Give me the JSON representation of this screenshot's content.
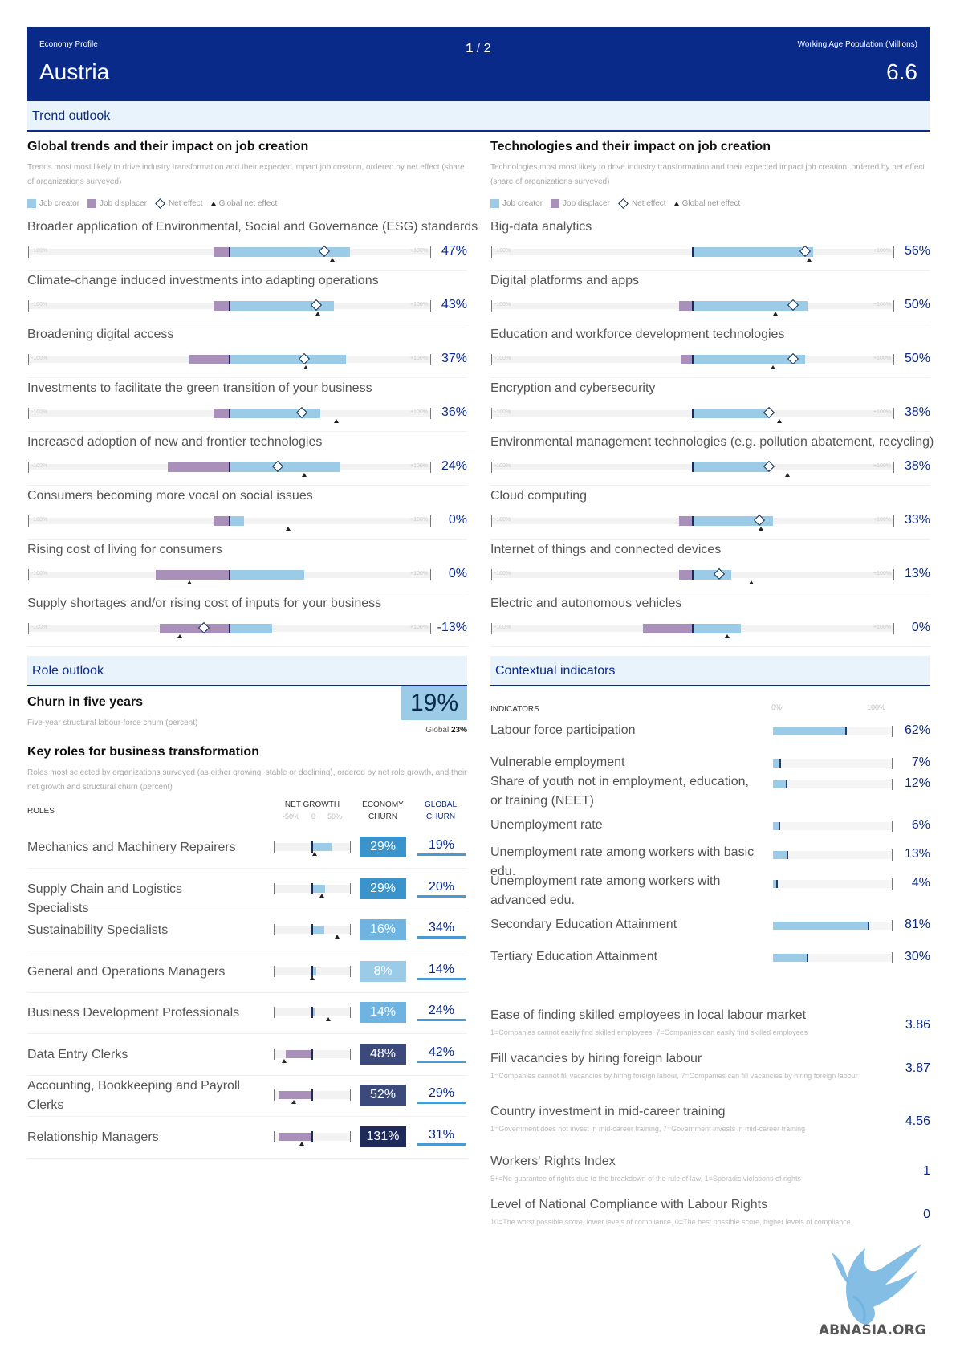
{
  "header": {
    "economy_profile_label": "Economy Profile",
    "country": "Austria",
    "page_current": "1",
    "page_sep": "/",
    "page_total": "2",
    "wap_label": "Working Age Population (Millions)",
    "wap_value": "6.6"
  },
  "colors": {
    "navy": "#0a2a8a",
    "creator": "#9ccbe8",
    "displacer": "#a990bb"
  },
  "trend_outlook": {
    "title": "Trend outlook",
    "legend": {
      "creator": "Job creator",
      "displacer": "Job displacer",
      "net": "Net effect",
      "global": "Global net effect"
    },
    "scale_left": "-100%",
    "scale_right": "+100%",
    "trends": {
      "title": "Global trends and their impact on job creation",
      "desc": "Trends most most likely to drive industry transformation and their expected impact job creation, ordered by net effect (share of organizations surveyed)",
      "items": [
        {
          "label": "Broader application of Environmental, Social and Governance (ESG) standards",
          "creator": 60,
          "displacer": 8,
          "net": 47,
          "global": 51,
          "value": "47%"
        },
        {
          "label": "Climate-change induced investments into adapting operations",
          "creator": 52,
          "displacer": 8,
          "net": 43,
          "global": 44,
          "value": "43%"
        },
        {
          "label": "Broadening digital access",
          "creator": 58,
          "displacer": 20,
          "net": 37,
          "global": 38,
          "value": "37%"
        },
        {
          "label": "Investments to facilitate the green transition of your business",
          "creator": 45,
          "displacer": 8,
          "net": 36,
          "global": 53,
          "value": "36%"
        },
        {
          "label": "Increased adoption of new and frontier technologies",
          "creator": 55,
          "displacer": 31,
          "net": 24,
          "global": 37,
          "value": "24%"
        },
        {
          "label": "Consumers becoming more vocal on social issues",
          "creator": 7,
          "displacer": 8,
          "net": 0,
          "global": 29,
          "value": "0%"
        },
        {
          "label": "Rising cost of living for consumers",
          "creator": 37,
          "displacer": 37,
          "net": 0,
          "global": -20,
          "value": "0%"
        },
        {
          "label": "Supply shortages and/or rising cost of inputs for your business",
          "creator": 21,
          "displacer": 35,
          "net": -13,
          "global": -25,
          "value": "-13%"
        }
      ]
    },
    "technologies": {
      "title": "Technologies and their impact on job creation",
      "desc": "Technologies most most likely to drive industry transformation and their expected impact job creation, ordered by net effect (share of organizations surveyed)",
      "items": [
        {
          "label": "Big-data analytics",
          "creator": 60,
          "displacer": 0,
          "net": 56,
          "global": 58,
          "value": "56%"
        },
        {
          "label": "Digital platforms and apps",
          "creator": 57,
          "displacer": 7,
          "net": 50,
          "global": 41,
          "value": "50%"
        },
        {
          "label": "Education and workforce development technologies",
          "creator": 56,
          "displacer": 6,
          "net": 50,
          "global": 40,
          "value": "50%"
        },
        {
          "label": "Encryption and cybersecurity",
          "creator": 38,
          "displacer": 0,
          "net": 38,
          "global": 43,
          "value": "38%"
        },
        {
          "label": "Environmental management technologies (e.g. pollution abatement, recycling)",
          "creator": 38,
          "displacer": 0,
          "net": 38,
          "global": 47,
          "value": "38%"
        },
        {
          "label": "Cloud computing",
          "creator": 40,
          "displacer": 7,
          "net": 33,
          "global": 34,
          "value": "33%"
        },
        {
          "label": "Internet of things and connected devices",
          "creator": 19,
          "displacer": 7,
          "net": 13,
          "global": 29,
          "value": "13%"
        },
        {
          "label": "Electric and autonomous vehicles",
          "creator": 24,
          "displacer": 25,
          "net": 0,
          "global": 17,
          "value": "0%"
        }
      ]
    }
  },
  "role_outlook": {
    "title": "Role outlook",
    "churn_title": "Churn in five years",
    "churn_desc": "Five-year structural labour-force churn (percent)",
    "churn_value": "19%",
    "churn_global_label": "Global",
    "churn_global_value": "23%",
    "key_roles_title": "Key roles for business transformation",
    "key_roles_desc": "Roles most selected by organizations surveyed (as either growing, stable or declining), ordered by net role growth, and their net growth and structural churn (percent)",
    "col_roles": "ROLES",
    "col_net_growth": "NET GROWTH",
    "scale_neg": "-50%",
    "scale_zero": "0",
    "scale_pos": "50%",
    "col_econ_churn_1": "ECONOMY",
    "col_econ_churn_2": "CHURN",
    "col_global_churn_1": "GLOBAL",
    "col_global_churn_2": "CHURN",
    "roles": [
      {
        "label": "Mechanics and Machinery Repairers",
        "net_growth": 26,
        "global_growth": 3,
        "churn": "29%",
        "churn_num": 29,
        "global_churn": "19%"
      },
      {
        "label": "Supply Chain and Logistics Specialists",
        "net_growth": 17,
        "global_growth": 13,
        "churn": "29%",
        "churn_num": 29,
        "global_churn": "20%"
      },
      {
        "label": "Sustainability Specialists",
        "net_growth": 16,
        "global_growth": 33,
        "churn": "16%",
        "churn_num": 16,
        "global_churn": "34%"
      },
      {
        "label": "General and Operations Managers",
        "net_growth": 5,
        "global_growth": 0,
        "churn": "8%",
        "churn_num": 8,
        "global_churn": "14%"
      },
      {
        "label": "Business Development Professionals",
        "net_growth": 3,
        "global_growth": 21,
        "churn": "14%",
        "churn_num": 14,
        "global_churn": "24%"
      },
      {
        "label": "Data Entry Clerks",
        "net_growth": -35,
        "global_growth": -37,
        "churn": "48%",
        "churn_num": 48,
        "global_churn": "42%"
      },
      {
        "label": "Accounting, Bookkeeping and Payroll Clerks",
        "net_growth": -45,
        "global_growth": -25,
        "churn": "52%",
        "churn_num": 52,
        "global_churn": "29%"
      },
      {
        "label": "Relationship Managers",
        "net_growth": -45,
        "global_growth": -14,
        "churn": "131%",
        "churn_num": 131,
        "global_churn": "31%"
      }
    ]
  },
  "contextual": {
    "title": "Contextual indicators",
    "col_indicators": "INDICATORS",
    "scale_0": "0%",
    "scale_100": "100%",
    "indicators": [
      {
        "label": "Labour force participation",
        "value": "62%",
        "num": 62
      },
      {
        "label": "Vulnerable employment",
        "value": "7%",
        "num": 7
      },
      {
        "label": "Share of youth not in employment, education, or training (NEET)",
        "value": "12%",
        "num": 12
      },
      {
        "label": "Unemployment rate",
        "value": "6%",
        "num": 6
      },
      {
        "label": "Unemployment rate among workers with basic edu.",
        "value": "13%",
        "num": 13
      },
      {
        "label": "Unemployment rate among workers with advanced edu.",
        "value": "4%",
        "num": 4
      },
      {
        "label": "Secondary Education Attainment",
        "value": "81%",
        "num": 81
      },
      {
        "label": "Tertiary Education Attainment",
        "value": "30%",
        "num": 30
      }
    ],
    "scores": [
      {
        "label": "Ease of finding skilled employees in local labour market",
        "note": "1=Companies cannot easily find skilled employees, 7=Companies can easily find skilled employees",
        "value": "3.86"
      },
      {
        "label": "Fill vacancies by hiring foreign labour",
        "note": "1=Companies cannot fill vacancies by hiring foreign labour, 7=Companies can fill vacancies by hiring foreign labour",
        "value": "3.87"
      },
      {
        "label": "Country investment in mid-career training",
        "note": "1=Government does not invest in mid-career training, 7=Government invests in mid-career training",
        "value": "4.56"
      },
      {
        "label": "Workers' Rights Index",
        "note": "5+=No guarantee of rights due to the breakdown of the rule of law, 1=Sporadic violations of rights",
        "value": "1"
      },
      {
        "label": "Level of National Compliance with Labour Rights",
        "note": "10=The worst possible score, lower levels of compliance, 0=The best possible score, higher levels of compliance",
        "value": "0"
      }
    ]
  },
  "watermark": {
    "text": "ABNASIA.ORG"
  }
}
